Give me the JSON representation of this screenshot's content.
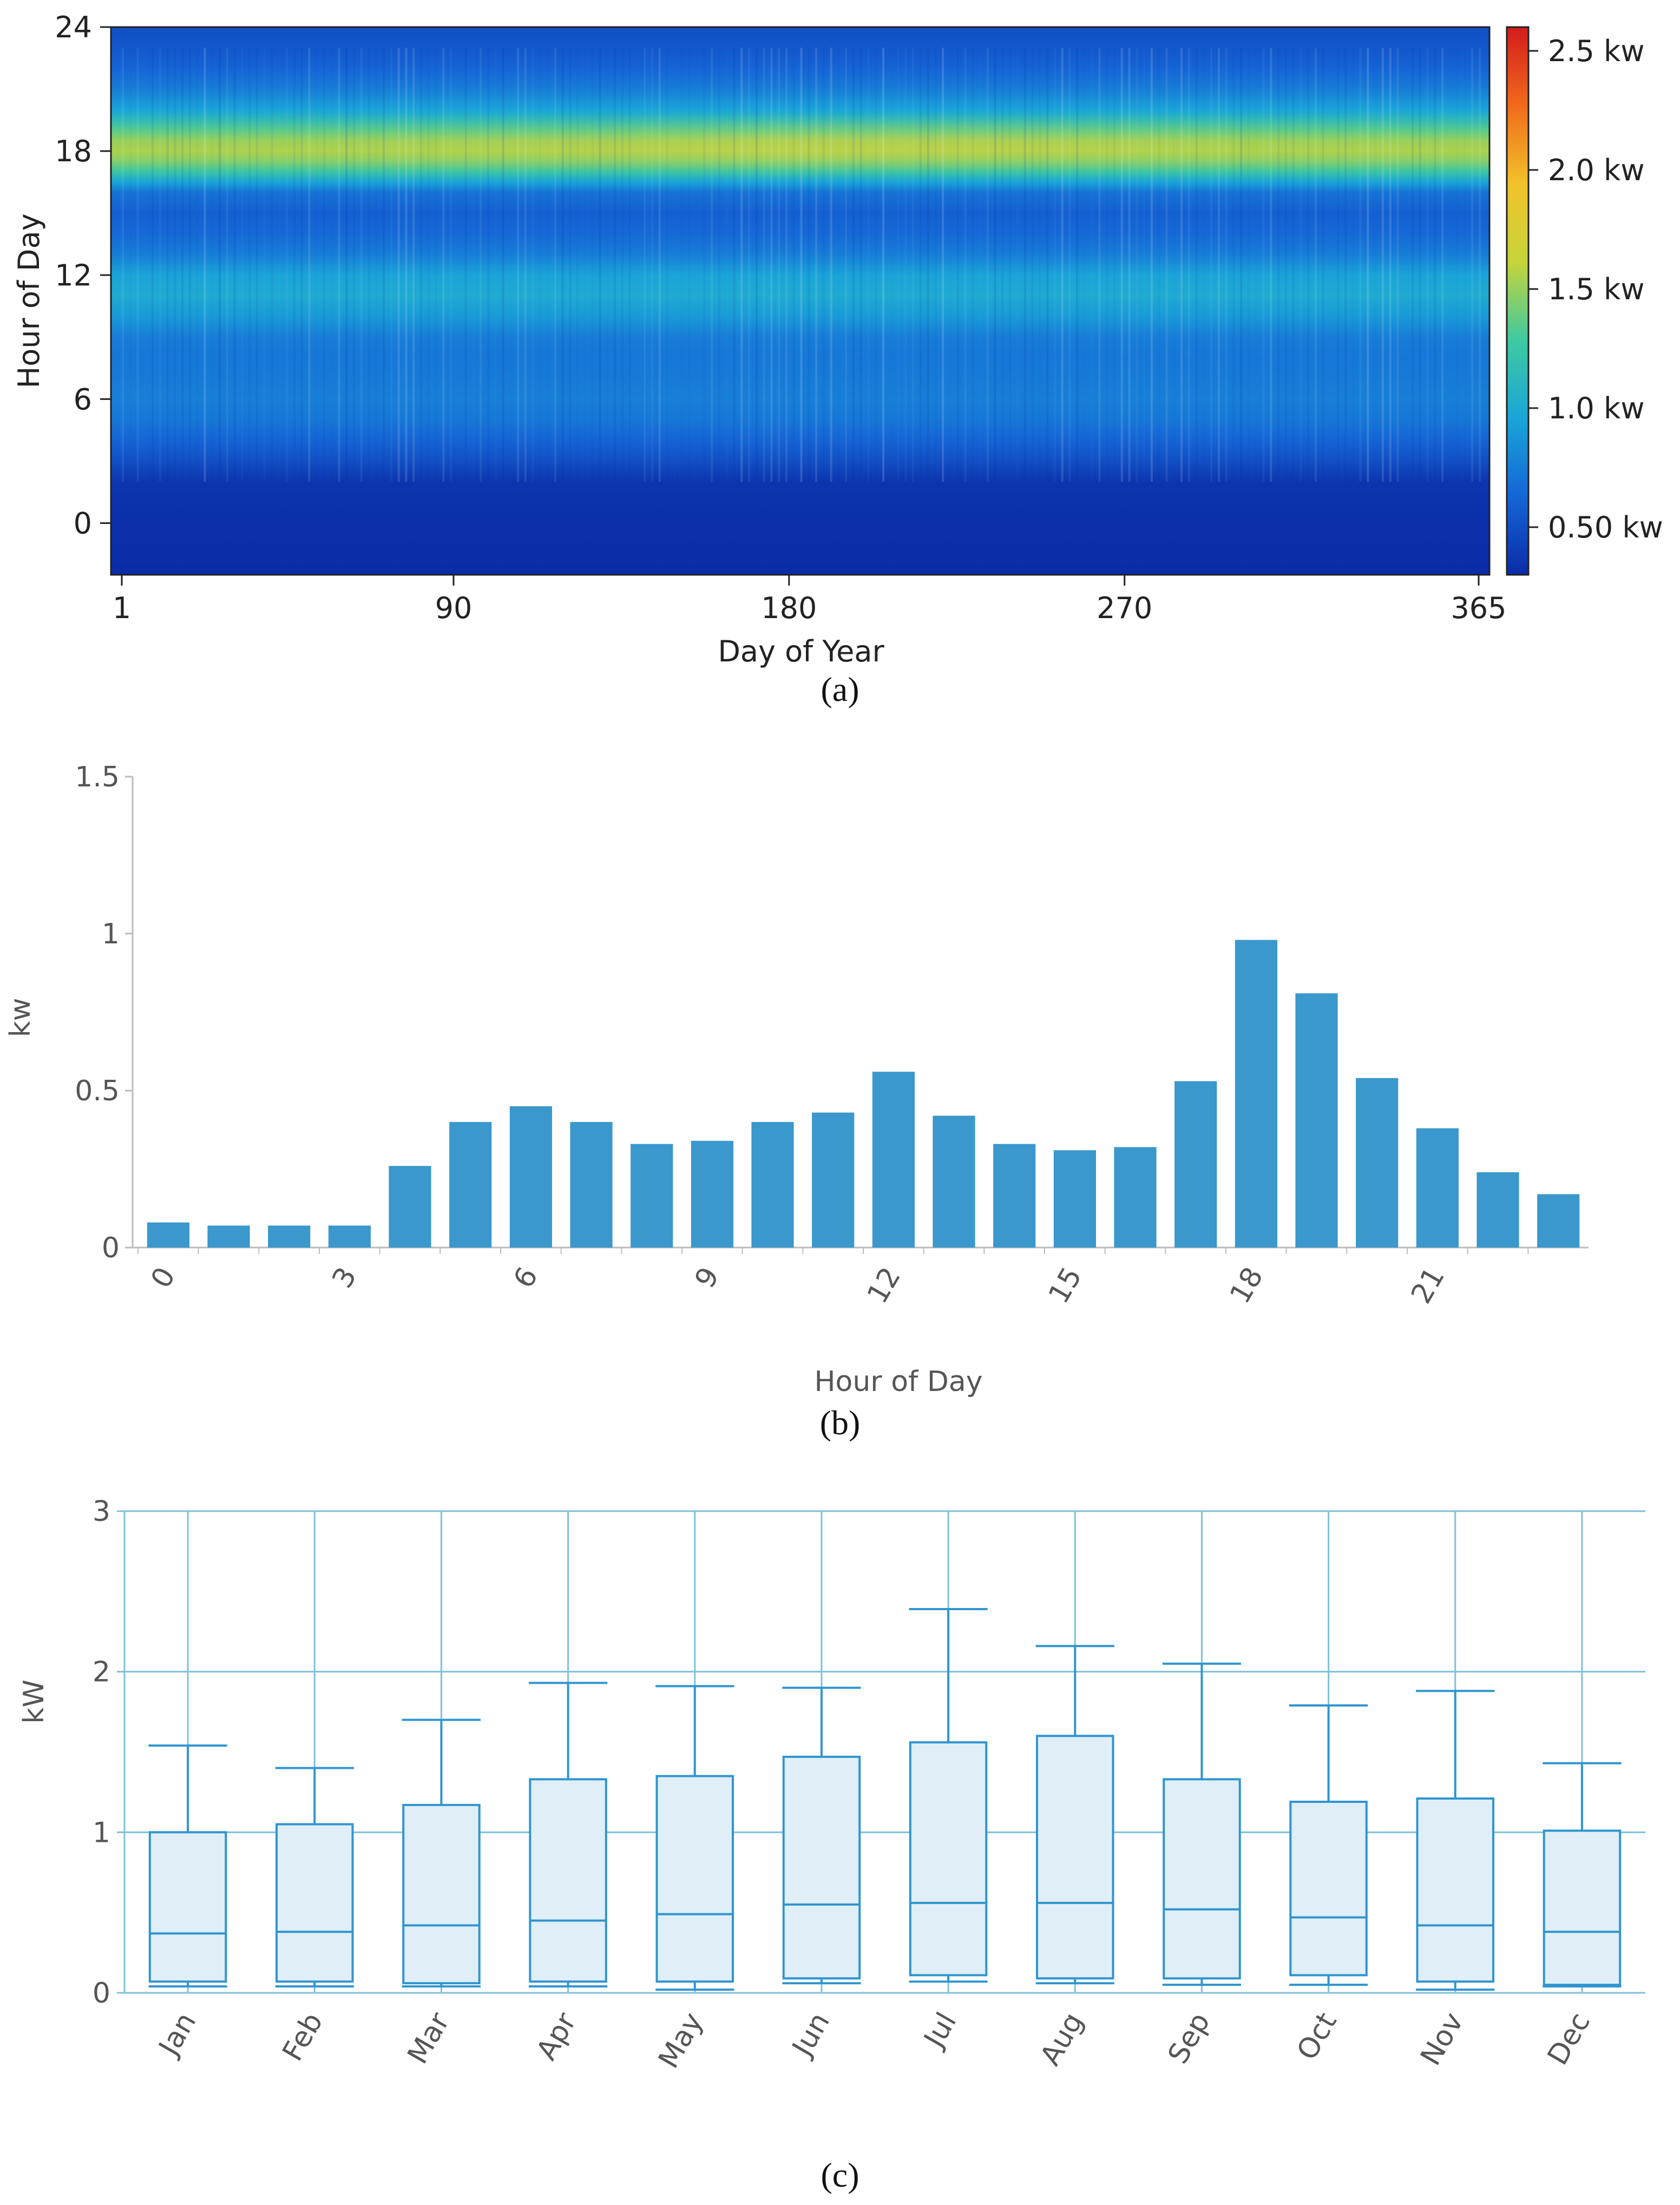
{
  "chart_data": [
    {
      "id": "a",
      "type": "heatmap",
      "caption": "(a)",
      "xlabel": "Day of Year",
      "ylabel": "Hour of Day",
      "x_ticks": [
        "1",
        "90",
        "180",
        "270",
        "365"
      ],
      "y_ticks": [
        "0",
        "6",
        "12",
        "18",
        "24"
      ],
      "xlim": [
        1,
        365
      ],
      "ylim": [
        -2.5,
        24
      ],
      "colorbar": {
        "range": [
          0.3,
          2.6
        ],
        "ticks": [
          "0.50 kw",
          "1.0 kw",
          "1.5 kw",
          "2.0 kw",
          "2.5 kw"
        ],
        "colors": [
          "#0a2ca8",
          "#1565d6",
          "#1aa5d8",
          "#3fc9a0",
          "#c6d43a",
          "#f2c22a",
          "#f06a1c",
          "#d41b1b"
        ]
      },
      "profile": {
        "hours": [
          -2.5,
          0,
          2,
          3,
          4,
          5,
          6,
          8,
          9,
          10,
          11,
          12,
          13,
          14,
          15,
          16,
          16.5,
          17,
          17.5,
          18,
          18.5,
          19,
          19.5,
          20,
          21,
          22,
          23,
          24
        ],
        "kw": [
          0.3,
          0.32,
          0.35,
          0.5,
          0.62,
          0.72,
          0.76,
          0.72,
          0.75,
          0.9,
          1.0,
          0.95,
          0.75,
          0.65,
          0.6,
          0.7,
          0.95,
          1.25,
          1.45,
          1.55,
          1.5,
          1.35,
          1.15,
          0.95,
          0.75,
          0.62,
          0.55,
          0.5
        ]
      }
    },
    {
      "id": "b",
      "type": "bar",
      "caption": "(b)",
      "xlabel": "Hour of Day",
      "ylabel": "kw",
      "ylim": [
        0,
        1.5
      ],
      "y_ticks": [
        "0",
        "0.5",
        "1",
        "1.5"
      ],
      "x_ticks": [
        "0",
        "3",
        "6",
        "9",
        "12",
        "15",
        "18",
        "21"
      ],
      "categories": [
        0,
        1,
        2,
        3,
        4,
        5,
        6,
        7,
        8,
        9,
        10,
        11,
        12,
        13,
        14,
        15,
        16,
        17,
        18,
        19,
        20,
        21,
        22,
        23
      ],
      "values": [
        0.08,
        0.07,
        0.07,
        0.07,
        0.26,
        0.4,
        0.45,
        0.4,
        0.33,
        0.34,
        0.4,
        0.43,
        0.56,
        0.42,
        0.33,
        0.31,
        0.32,
        0.53,
        0.98,
        0.81,
        0.54,
        0.38,
        0.24,
        0.17
      ],
      "color": "#3a98cc"
    },
    {
      "id": "c",
      "type": "boxplot",
      "caption": "(c)",
      "xlabel": "",
      "ylabel": "kW",
      "ylim": [
        0,
        3
      ],
      "y_ticks": [
        "0",
        "1",
        "2",
        "3"
      ],
      "categories": [
        "Jan",
        "Feb",
        "Mar",
        "Apr",
        "May",
        "Jun",
        "Jul",
        "Aug",
        "Sep",
        "Oct",
        "Nov",
        "Dec"
      ],
      "boxes": [
        {
          "min": 0.04,
          "q1": 0.07,
          "median": 0.37,
          "q3": 1.0,
          "max": 1.54
        },
        {
          "min": 0.04,
          "q1": 0.07,
          "median": 0.38,
          "q3": 1.05,
          "max": 1.4
        },
        {
          "min": 0.04,
          "q1": 0.06,
          "median": 0.42,
          "q3": 1.17,
          "max": 1.7
        },
        {
          "min": 0.04,
          "q1": 0.07,
          "median": 0.45,
          "q3": 1.33,
          "max": 1.93
        },
        {
          "min": 0.02,
          "q1": 0.07,
          "median": 0.49,
          "q3": 1.35,
          "max": 1.91
        },
        {
          "min": 0.06,
          "q1": 0.09,
          "median": 0.55,
          "q3": 1.47,
          "max": 1.9
        },
        {
          "min": 0.07,
          "q1": 0.11,
          "median": 0.56,
          "q3": 1.56,
          "max": 2.39
        },
        {
          "min": 0.06,
          "q1": 0.09,
          "median": 0.56,
          "q3": 1.6,
          "max": 2.16
        },
        {
          "min": 0.05,
          "q1": 0.09,
          "median": 0.52,
          "q3": 1.33,
          "max": 2.05
        },
        {
          "min": 0.05,
          "q1": 0.11,
          "median": 0.47,
          "q3": 1.19,
          "max": 1.79
        },
        {
          "min": 0.02,
          "q1": 0.07,
          "median": 0.42,
          "q3": 1.21,
          "max": 1.88
        },
        {
          "min": 0.04,
          "q1": 0.05,
          "median": 0.38,
          "q3": 1.01,
          "max": 1.43
        }
      ],
      "line_color": "#2f95cf",
      "fill_color": "#e0eef7",
      "grid_color": "#7fc0d9"
    }
  ]
}
